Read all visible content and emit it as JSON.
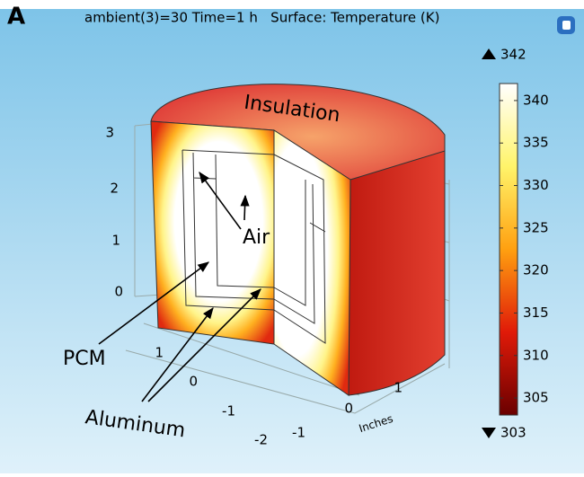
{
  "panel_label": "A",
  "header": "ambient(3)=30 Time=1 h   Surface: Temperature (K)",
  "colorbar": {
    "max": 342,
    "min": 303,
    "ticks": [
      305,
      310,
      315,
      320,
      325,
      330,
      335,
      340
    ]
  },
  "annotations": {
    "insulation": "Insulation",
    "air": "Air",
    "pcm": "PCM",
    "aluminum": "Aluminum"
  },
  "axes": {
    "z_ticks": [
      3,
      2,
      1,
      0
    ],
    "x_ticks": [
      1,
      0,
      -1,
      -2
    ],
    "y_ticks": [
      -1,
      0,
      1
    ],
    "y_label": "Inches"
  }
}
